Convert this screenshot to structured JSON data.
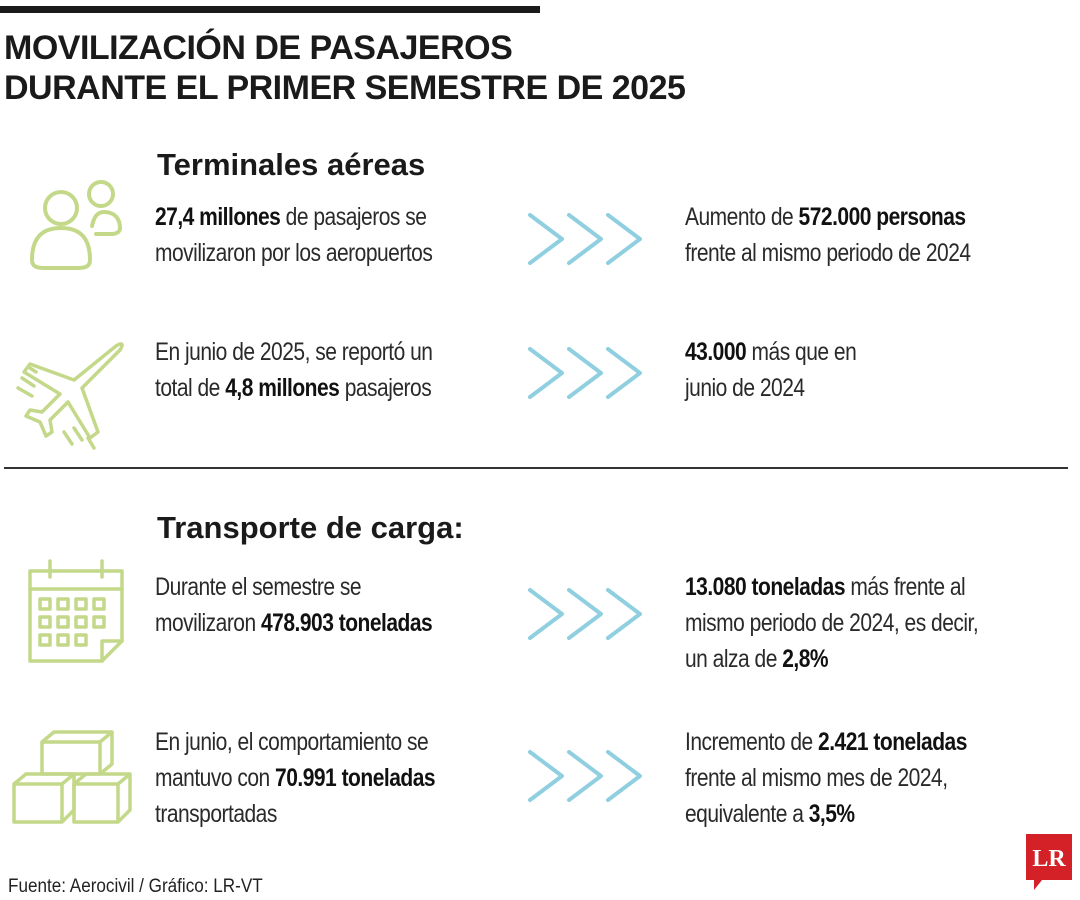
{
  "title": {
    "line1": "MOVILIZACIÓN DE PASAJEROS",
    "line2": "DURANTE EL PRIMER SEMESTRE DE 2025"
  },
  "colors": {
    "icon_green": "#c4d88a",
    "arrow_blue": "#8fcfdf",
    "logo_red": "#d42027"
  },
  "sections": [
    {
      "title": "Terminales aéreas",
      "rows": [
        {
          "icon": "people-icon",
          "left": {
            "l1a": "27,4 millones",
            "l1b": " de pasajeros se",
            "l2": "movilizaron por los aeropuertos"
          },
          "right": {
            "l1a": "Aumento de ",
            "l1b": "572.000 personas",
            "l2": "frente al mismo periodo de 2024"
          }
        },
        {
          "icon": "airplane-icon",
          "left": {
            "l1": "En junio de 2025, se reportó un",
            "l2a": "total de ",
            "l2b": "4,8 millones",
            "l2c": " pasajeros"
          },
          "right": {
            "l1a": "43.000",
            "l1b": " más que en",
            "l2": "junio de 2024"
          }
        }
      ]
    },
    {
      "title": "Transporte de carga:",
      "rows": [
        {
          "icon": "calendar-icon",
          "left": {
            "l1": "Durante el semestre se",
            "l2a": "movilizaron ",
            "l2b": "478.903 toneladas"
          },
          "right": {
            "l1a": "13.080 toneladas",
            "l1b": " más frente al",
            "l2": "mismo periodo de 2024, es decir,",
            "l3a": "un alza de ",
            "l3b": "2,8%"
          }
        },
        {
          "icon": "boxes-icon",
          "left": {
            "l1": "En junio, el comportamiento se",
            "l2a": "mantuvo con ",
            "l2b": "70.991 toneladas",
            "l3": "transportadas"
          },
          "right": {
            "l1a": "Incremento de ",
            "l1b": "2.421 toneladas",
            "l2": "frente al mismo mes de 2024,",
            "l3a": "equivalente a ",
            "l3b": "3,5%"
          }
        }
      ]
    }
  ],
  "source": "Fuente: Aerocivil  / Gráfico: LR-VT",
  "logo": {
    "text": "LR"
  }
}
